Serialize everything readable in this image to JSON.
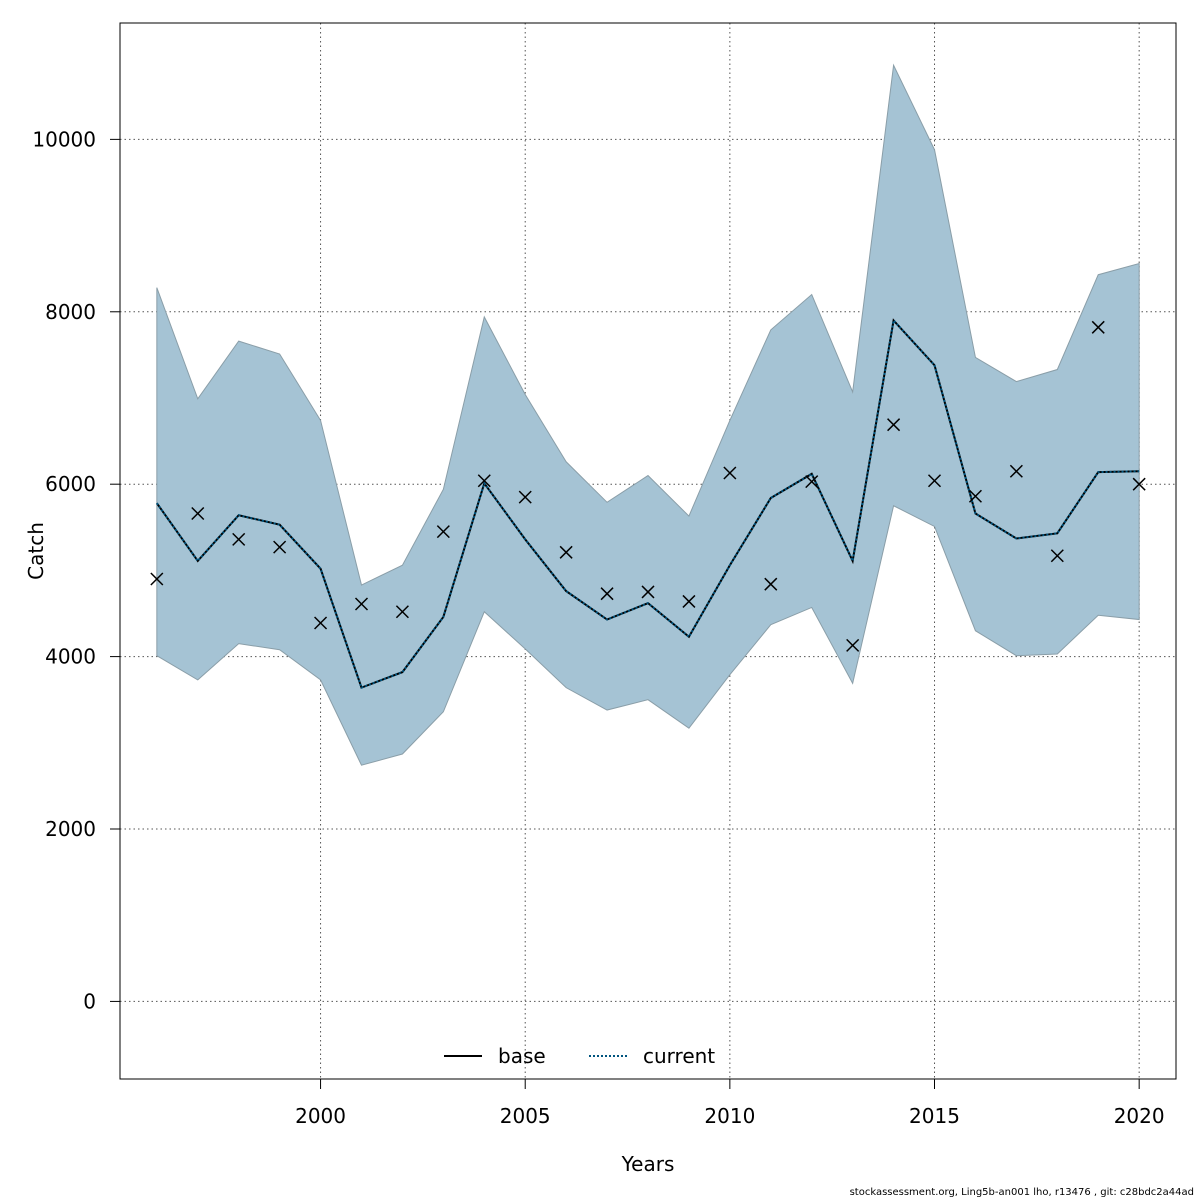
{
  "chart_data": {
    "type": "line",
    "title": "",
    "xlabel": "Years",
    "ylabel": "Catch",
    "xlim": [
      1995.1,
      2020.9
    ],
    "ylim": [
      -900,
      11350
    ],
    "x_ticks": [
      2000,
      2005,
      2010,
      2015,
      2020
    ],
    "y_ticks": [
      0,
      2000,
      4000,
      6000,
      8000,
      10000
    ],
    "grid": true,
    "legend": {
      "position": "bottom-center",
      "entries": [
        {
          "name": "base",
          "style": "solid",
          "color": "#000000"
        },
        {
          "name": "current",
          "style": "dotted",
          "color": "#00557f"
        }
      ]
    },
    "x": [
      1996,
      1997,
      1998,
      1999,
      2000,
      2001,
      2002,
      2003,
      2004,
      2005,
      2006,
      2007,
      2008,
      2009,
      2010,
      2011,
      2012,
      2013,
      2014,
      2015,
      2016,
      2017,
      2018,
      2019,
      2020
    ],
    "series": [
      {
        "name": "current",
        "type": "line",
        "values": [
          5780,
          5110,
          5640,
          5530,
          5020,
          3640,
          3820,
          4460,
          6010,
          5360,
          4760,
          4430,
          4620,
          4230,
          5060,
          5840,
          6120,
          5110,
          7900,
          7380,
          5660,
          5370,
          5430,
          6140,
          6150
        ]
      },
      {
        "name": "interval_upper",
        "type": "area",
        "values": [
          8280,
          6990,
          7660,
          7510,
          6740,
          4830,
          5060,
          5940,
          7940,
          7040,
          6260,
          5790,
          6100,
          5630,
          6740,
          7790,
          8200,
          7070,
          10860,
          9880,
          7470,
          7190,
          7330,
          8430,
          8560
        ]
      },
      {
        "name": "interval_lower",
        "type": "area",
        "values": [
          4010,
          3730,
          4150,
          4080,
          3730,
          2740,
          2870,
          3360,
          4520,
          4090,
          3640,
          3380,
          3500,
          3170,
          3790,
          4370,
          4570,
          3690,
          5750,
          5510,
          4300,
          4010,
          4030,
          4480,
          4430
        ]
      },
      {
        "name": "observed",
        "type": "scatter",
        "marker": "x",
        "values": [
          4900,
          5660,
          5360,
          5270,
          4390,
          4610,
          4520,
          5450,
          6040,
          5850,
          5210,
          4730,
          4750,
          4640,
          6130,
          4840,
          6030,
          4130,
          6690,
          6040,
          5860,
          6150,
          5170,
          7820,
          6000
        ]
      }
    ],
    "colors": {
      "interval_fill": "#a5c3d4",
      "interval_edge": "#8a9ea8",
      "current_line": "#00557f",
      "marker": "#000000",
      "grid": "#555555"
    }
  },
  "footer": "stockassessment.org, Ling5b-an001  lho, r13476 , git: c28bdc2a44ad"
}
